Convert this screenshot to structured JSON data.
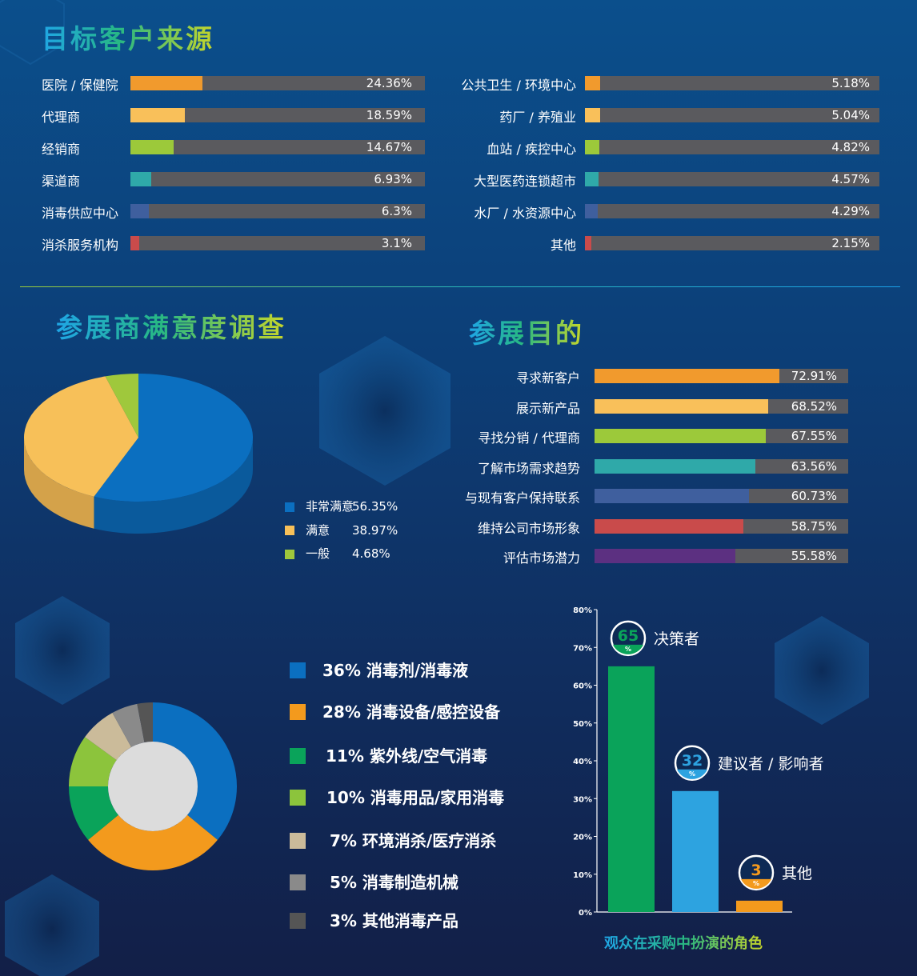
{
  "titles": {
    "customer_source": "目标客户来源",
    "satisfaction": "参展商满意度调查",
    "purpose": "参展目的",
    "role_chart": "观众在采购中扮演的角色"
  },
  "colors": {
    "orange": "#f19a2d",
    "yellow": "#f9c05a",
    "green": "#9cc93a",
    "teal": "#2fa9a9",
    "blue_slate": "#3f5f9e",
    "red": "#c94b4b",
    "purple": "#5c3081",
    "pie_blue": "#0b6fc0",
    "pie_yellow": "#f7c059",
    "pie_green": "#9fc83c",
    "bar_green": "#0aa35a",
    "bar_blue": "#2da3e0",
    "bar_orange": "#f39a1d"
  },
  "chart_data": [
    {
      "type": "bar",
      "orientation": "horizontal",
      "title": "目标客户来源",
      "panel": "left",
      "categories": [
        "医院 / 保健院",
        "代理商",
        "经销商",
        "渠道商",
        "消毒供应中心",
        "消杀服务机构"
      ],
      "values": [
        24.36,
        18.59,
        14.67,
        6.93,
        6.3,
        3.1
      ],
      "labels": [
        "24.36%",
        "18.59%",
        "14.67%",
        "6.93%",
        "6.3%",
        "3.1%"
      ],
      "colors": [
        "#f19a2d",
        "#f9c05a",
        "#9cc93a",
        "#2fa9a9",
        "#3f5f9e",
        "#c94b4b"
      ],
      "xlim": [
        0,
        100
      ]
    },
    {
      "type": "bar",
      "orientation": "horizontal",
      "panel": "right",
      "categories": [
        "公共卫生 / 环境中心",
        "药厂 / 养殖业",
        "血站 / 疾控中心",
        "大型医药连锁超市",
        "水厂 / 水资源中心",
        "其他"
      ],
      "values": [
        5.18,
        5.04,
        4.82,
        4.57,
        4.29,
        2.15
      ],
      "labels": [
        "5.18%",
        "5.04%",
        "4.82%",
        "4.57%",
        "4.29%",
        "2.15%"
      ],
      "colors": [
        "#f19a2d",
        "#f9c05a",
        "#9cc93a",
        "#2fa9a9",
        "#3f5f9e",
        "#c94b4b"
      ],
      "xlim": [
        0,
        100
      ]
    },
    {
      "type": "pie",
      "title": "参展商满意度调查",
      "categories": [
        "非常满意",
        "满意",
        "一般"
      ],
      "values": [
        56.35,
        38.97,
        4.68
      ],
      "labels": [
        "56.35%",
        "38.97%",
        "4.68%"
      ],
      "colors": [
        "#0b6fc0",
        "#f7c059",
        "#9fc83c"
      ],
      "legend": "right"
    },
    {
      "type": "bar",
      "orientation": "horizontal",
      "title": "参展目的",
      "categories": [
        "寻求新客户",
        "展示新产品",
        "寻找分销 / 代理商",
        "了解市场需求趋势",
        "与现有客户保持联系",
        "维持公司市场形象",
        "评估市场潜力"
      ],
      "values": [
        72.91,
        68.52,
        67.55,
        63.56,
        60.73,
        58.75,
        55.58
      ],
      "labels": [
        "72.91%",
        "68.52%",
        "67.55%",
        "63.56%",
        "60.73%",
        "58.75%",
        "55.58%"
      ],
      "colors": [
        "#f19a2d",
        "#f9c05a",
        "#9cc93a",
        "#2fa9a9",
        "#3f5f9e",
        "#c94b4b",
        "#5c3081"
      ],
      "xlim": [
        0,
        100
      ]
    },
    {
      "type": "pie",
      "style": "donut",
      "categories": [
        "消毒剂/消毒液",
        "消毒设备/感控设备",
        "紫外线/空气消毒",
        "消毒用品/家用消毒",
        "环境消杀/医疗消杀",
        "消毒制造机械",
        "其他消毒产品"
      ],
      "values": [
        36,
        28,
        11,
        10,
        7,
        5,
        3
      ],
      "labels": [
        "36%",
        "28%",
        "11%",
        "10%",
        "7%",
        "5%",
        "3%"
      ],
      "colors": [
        "#0b6fc0",
        "#f39a1d",
        "#0aa35a",
        "#8cc43c",
        "#cbbb9a",
        "#8a8a8a",
        "#555555"
      ],
      "legend": "left"
    },
    {
      "type": "bar",
      "title": "观众在采购中扮演的角色",
      "categories": [
        "决策者",
        "建议者 / 影响者",
        "其他"
      ],
      "values": [
        65,
        32,
        3
      ],
      "labels": [
        "65",
        "32",
        "3"
      ],
      "unit": "%",
      "colors": [
        "#0aa35a",
        "#2da3e0",
        "#f39a1d"
      ],
      "ylim": [
        0,
        80
      ],
      "yticks": [
        "0%",
        "10%",
        "20%",
        "30%",
        "40%",
        "50%",
        "60%",
        "70%",
        "80%"
      ]
    }
  ]
}
